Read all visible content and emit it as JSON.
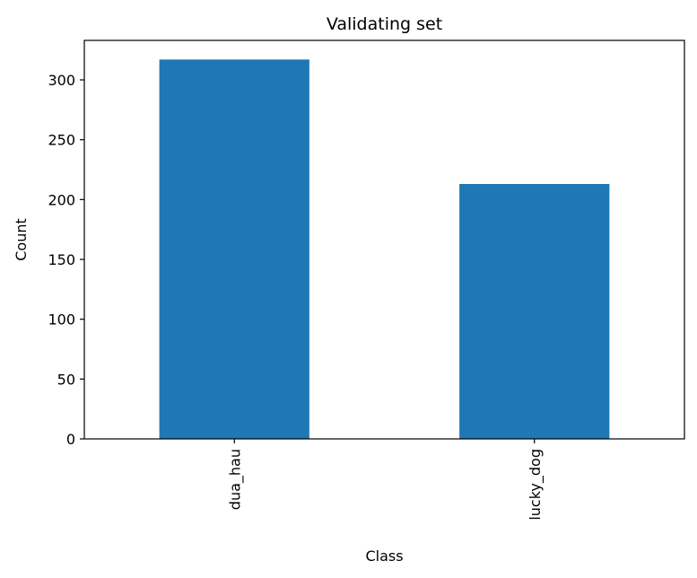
{
  "chart_data": {
    "type": "bar",
    "title": "Validating set",
    "xlabel": "Class",
    "ylabel": "Count",
    "categories": [
      "dua_hau",
      "lucky_dog"
    ],
    "values": [
      317,
      213
    ],
    "ylim": [
      0,
      333
    ],
    "yticks": [
      0,
      50,
      100,
      150,
      200,
      250,
      300
    ],
    "xtick_rotation": "vertical",
    "grid": false,
    "legend": "none",
    "colors": {
      "bar": "#1f77b4",
      "axis": "#000000",
      "background": "#ffffff"
    }
  }
}
